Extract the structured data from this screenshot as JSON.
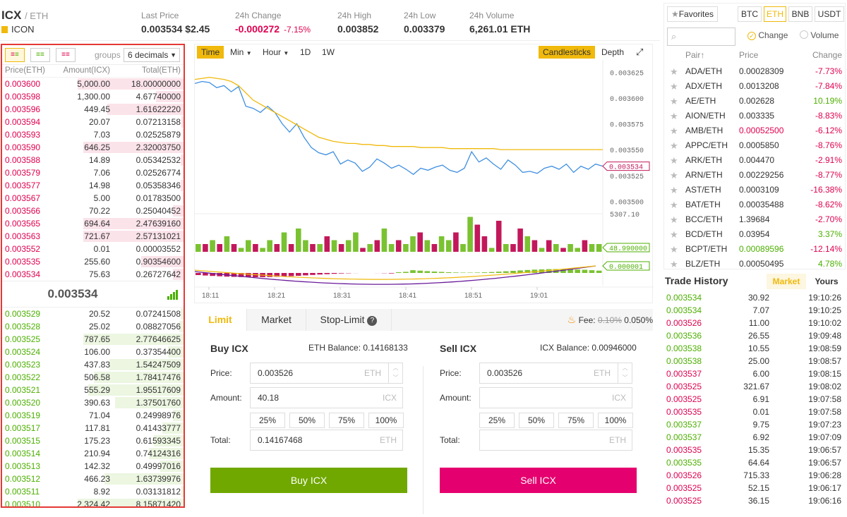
{
  "header": {
    "symbol": "ICX",
    "quote": "/ ETH",
    "name": "ICON",
    "last_price_label": "Last Price",
    "last_price": "0.003534",
    "last_price_usd": "$2.45",
    "change_label": "24h Change",
    "change": "-0.000272",
    "change_pct": "-7.15%",
    "high_label": "24h High",
    "high": "0.003852",
    "low_label": "24h Low",
    "low": "0.003379",
    "volume_label": "24h Volume",
    "volume": "6,261.01 ETH"
  },
  "orderbook": {
    "groups_label": "groups",
    "decimals": "6 decimals",
    "headers": [
      "Price(ETH)",
      "Amount(ICX)",
      "Total(ETH)"
    ],
    "asks": [
      {
        "price": "0.003600",
        "amount": "5,000.00",
        "total": "18.00000000",
        "depth": 1.0
      },
      {
        "price": "0.003598",
        "amount": "1,300.00",
        "total": "4.67740000",
        "depth": 0.26
      },
      {
        "price": "0.003596",
        "amount": "449.45",
        "total": "1.61622220",
        "depth": 0.72
      },
      {
        "price": "0.003594",
        "amount": "20.07",
        "total": "0.07213158",
        "depth": 0.02
      },
      {
        "price": "0.003593",
        "amount": "7.03",
        "total": "0.02525879",
        "depth": 0.01
      },
      {
        "price": "0.003590",
        "amount": "646.25",
        "total": "2.32003750",
        "depth": 0.95
      },
      {
        "price": "0.003588",
        "amount": "14.89",
        "total": "0.05342532",
        "depth": 0.03
      },
      {
        "price": "0.003579",
        "amount": "7.06",
        "total": "0.02526774",
        "depth": 0.01
      },
      {
        "price": "0.003577",
        "amount": "14.98",
        "total": "0.05358346",
        "depth": 0.03
      },
      {
        "price": "0.003567",
        "amount": "5.00",
        "total": "0.01783500",
        "depth": 0.01
      },
      {
        "price": "0.003566",
        "amount": "70.22",
        "total": "0.25040452",
        "depth": 0.1
      },
      {
        "price": "0.003565",
        "amount": "694.64",
        "total": "2.47639160",
        "depth": 0.95
      },
      {
        "price": "0.003563",
        "amount": "721.67",
        "total": "2.57131021",
        "depth": 0.95
      },
      {
        "price": "0.003552",
        "amount": "0.01",
        "total": "0.00003552",
        "depth": 0.0
      },
      {
        "price": "0.003535",
        "amount": "255.60",
        "total": "0.90354600",
        "depth": 0.4
      },
      {
        "price": "0.003534",
        "amount": "75.63",
        "total": "0.26727642",
        "depth": 0.1
      }
    ],
    "mid_price": "0.003534",
    "bids": [
      {
        "price": "0.003529",
        "amount": "20.52",
        "total": "0.07241508",
        "depth": 0.03
      },
      {
        "price": "0.003528",
        "amount": "25.02",
        "total": "0.08827056",
        "depth": 0.04
      },
      {
        "price": "0.003525",
        "amount": "787.65",
        "total": "2.77646625",
        "depth": 0.95
      },
      {
        "price": "0.003524",
        "amount": "106.00",
        "total": "0.37354400",
        "depth": 0.15
      },
      {
        "price": "0.003523",
        "amount": "437.83",
        "total": "1.54247509",
        "depth": 0.7
      },
      {
        "price": "0.003522",
        "amount": "506.58",
        "total": "1.78417476",
        "depth": 0.85
      },
      {
        "price": "0.003521",
        "amount": "555.29",
        "total": "1.95517609",
        "depth": 0.9
      },
      {
        "price": "0.003520",
        "amount": "390.63",
        "total": "1.37501760",
        "depth": 0.65
      },
      {
        "price": "0.003519",
        "amount": "71.04",
        "total": "0.24998976",
        "depth": 0.1
      },
      {
        "price": "0.003517",
        "amount": "117.81",
        "total": "0.41433777",
        "depth": 0.2
      },
      {
        "price": "0.003515",
        "amount": "175.23",
        "total": "0.61593345",
        "depth": 0.28
      },
      {
        "price": "0.003514",
        "amount": "210.94",
        "total": "0.74124316",
        "depth": 0.33
      },
      {
        "price": "0.003513",
        "amount": "142.32",
        "total": "0.49997016",
        "depth": 0.22
      },
      {
        "price": "0.003512",
        "amount": "466.23",
        "total": "1.63739976",
        "depth": 0.75
      },
      {
        "price": "0.003511",
        "amount": "8.92",
        "total": "0.03131812",
        "depth": 0.02
      },
      {
        "price": "0.003510",
        "amount": "2,324.42",
        "total": "8.15871420",
        "depth": 1.0
      }
    ]
  },
  "chart": {
    "tools": [
      "Time",
      "Min",
      "Hour",
      "1D",
      "1W"
    ],
    "candlesticks_label": "Candlesticks",
    "depth_label": "Depth",
    "y_ticks": [
      "0.003625",
      "0.003600",
      "0.003575",
      "0.003550",
      "0.003525",
      "0.003500"
    ],
    "price_tag": "0.003534",
    "vol_max": "5307.10",
    "vol_tag": "48.990000",
    "macd_tag": "0.000001",
    "x_ticks": [
      "18:11",
      "18:21",
      "18:31",
      "18:41",
      "18:51",
      "19:01"
    ]
  },
  "chart_data": {
    "type": "line",
    "series": [
      {
        "values": [
          0.003614,
          0.003616,
          0.003615,
          0.00361,
          0.003612,
          0.003606,
          0.003611,
          0.003592,
          0.00359,
          0.003586,
          0.003592,
          0.003586,
          0.003575,
          0.003567,
          0.003575,
          0.003562,
          0.003552,
          0.003547,
          0.003545,
          0.003548,
          0.003536,
          0.00354,
          0.003537,
          0.003529,
          0.003533,
          0.003541,
          0.003537,
          0.003532,
          0.003535,
          0.003531,
          0.003526,
          0.003532,
          0.00353,
          0.003533,
          0.003535,
          0.00353,
          0.003528,
          0.003532,
          0.003548,
          0.003538,
          0.003542,
          0.003536,
          0.003531,
          0.00354,
          0.003535,
          0.003528,
          0.003529,
          0.003527,
          0.003532,
          0.003534,
          0.003531,
          0.003536,
          0.003528,
          0.003534,
          0.003531,
          0.003536,
          0.003534
        ],
        "color": "#3f8fe0"
      },
      {
        "values": [
          0.003618,
          0.003619,
          0.00362,
          0.003619,
          0.003618,
          0.003616,
          0.003612,
          0.003605,
          0.003598,
          0.003594,
          0.00359,
          0.003586,
          0.003582,
          0.003578,
          0.003574,
          0.00357,
          0.003566,
          0.003562,
          0.00356,
          0.003558,
          0.003557,
          0.003556,
          0.003556,
          0.003555,
          0.003555,
          0.003554,
          0.003554,
          0.003553,
          0.003553,
          0.003553,
          0.003553,
          0.003552,
          0.003552,
          0.003552,
          0.003552,
          0.003551,
          0.003551,
          0.003551,
          0.003551,
          0.003551,
          0.003551,
          0.003551,
          0.00355,
          0.00355,
          0.00355,
          0.00355,
          0.00355,
          0.00355,
          0.00355,
          0.00355,
          0.00355,
          0.00355,
          0.00355,
          0.00355,
          0.00355,
          0.00355,
          0.00355
        ],
        "color": "#f0b90b"
      }
    ],
    "volume": [
      2,
      2,
      3,
      2,
      4,
      2,
      1,
      3,
      2,
      1,
      3,
      2,
      5,
      2,
      6,
      3,
      2,
      2,
      4,
      3,
      2,
      3,
      5,
      1,
      2,
      3,
      6,
      2,
      3,
      2,
      4,
      5,
      3,
      2,
      4,
      3,
      5,
      2,
      9,
      7,
      4,
      1,
      8,
      2,
      2,
      6,
      4,
      3,
      1,
      3,
      2,
      1,
      2,
      1,
      3,
      2,
      2
    ],
    "volume_up": [
      true,
      false,
      true,
      false,
      true,
      false,
      true,
      true,
      false,
      true,
      true,
      false,
      true,
      false,
      true,
      true,
      false,
      true,
      false,
      true,
      false,
      true,
      true,
      false,
      true,
      false,
      true,
      true,
      false,
      true,
      true,
      false,
      true,
      false,
      true,
      true,
      false,
      true,
      true,
      false,
      false,
      true,
      false,
      true,
      false,
      false,
      true,
      false,
      true,
      false,
      true,
      false,
      true,
      true,
      false,
      true,
      true
    ],
    "ylim": [
      0.00349,
      0.00363
    ]
  },
  "trade": {
    "tabs": [
      "Limit",
      "Market",
      "Stop-Limit"
    ],
    "fee_label": "Fee:",
    "fee_old": "0.10%",
    "fee_new": "0.050%",
    "buy": {
      "title": "Buy ICX",
      "balance": "ETH Balance: 0.14168133",
      "price_label": "Price:",
      "price": "0.003526",
      "price_unit": "ETH",
      "amount_label": "Amount:",
      "amount": "40.18",
      "amount_unit": "ICX",
      "total_label": "Total:",
      "total": "0.14167468",
      "total_unit": "ETH",
      "button": "Buy ICX"
    },
    "sell": {
      "title": "Sell ICX",
      "balance": "ICX Balance: 0.00946000",
      "price_label": "Price:",
      "price": "0.003526",
      "price_unit": "ETH",
      "amount_label": "Amount:",
      "amount": "",
      "amount_unit": "ICX",
      "total_label": "Total:",
      "total": "",
      "total_unit": "ETH",
      "button": "Sell ICX"
    },
    "percents": [
      "25%",
      "50%",
      "75%",
      "100%"
    ]
  },
  "markets": {
    "favorites": "Favorites",
    "tabs": [
      "BTC",
      "ETH",
      "BNB",
      "USDT"
    ],
    "change_radio": "Change",
    "volume_radio": "Volume",
    "headers": [
      "Pair",
      "Price",
      "Change"
    ],
    "rows": [
      {
        "pair": "ADA/ETH",
        "price": "0.00028309",
        "change": "-7.73%",
        "dir": "red",
        "pcolor": "#333"
      },
      {
        "pair": "ADX/ETH",
        "price": "0.0013208",
        "change": "-7.84%",
        "dir": "red",
        "pcolor": "#333"
      },
      {
        "pair": "AE/ETH",
        "price": "0.002628",
        "change": "10.19%",
        "dir": "green",
        "pcolor": "#333"
      },
      {
        "pair": "AION/ETH",
        "price": "0.003335",
        "change": "-8.83%",
        "dir": "red",
        "pcolor": "#333"
      },
      {
        "pair": "AMB/ETH",
        "price": "0.00052500",
        "change": "-6.12%",
        "dir": "red",
        "pcolor": "#e0004f"
      },
      {
        "pair": "APPC/ETH",
        "price": "0.0005850",
        "change": "-8.76%",
        "dir": "red",
        "pcolor": "#333"
      },
      {
        "pair": "ARK/ETH",
        "price": "0.004470",
        "change": "-2.91%",
        "dir": "red",
        "pcolor": "#333"
      },
      {
        "pair": "ARN/ETH",
        "price": "0.00229256",
        "change": "-8.77%",
        "dir": "red",
        "pcolor": "#333"
      },
      {
        "pair": "AST/ETH",
        "price": "0.0003109",
        "change": "-16.38%",
        "dir": "red",
        "pcolor": "#333"
      },
      {
        "pair": "BAT/ETH",
        "price": "0.00035488",
        "change": "-8.62%",
        "dir": "red",
        "pcolor": "#333"
      },
      {
        "pair": "BCC/ETH",
        "price": "1.39684",
        "change": "-2.70%",
        "dir": "red",
        "pcolor": "#333"
      },
      {
        "pair": "BCD/ETH",
        "price": "0.03954",
        "change": "3.37%",
        "dir": "green",
        "pcolor": "#333"
      },
      {
        "pair": "BCPT/ETH",
        "price": "0.00089596",
        "change": "-12.14%",
        "dir": "red",
        "pcolor": "#4caf00"
      },
      {
        "pair": "BLZ/ETH",
        "price": "0.00050495",
        "change": "4.78%",
        "dir": "green",
        "pcolor": "#333"
      }
    ]
  },
  "history": {
    "title": "Trade History",
    "tabs": [
      "Market",
      "Yours"
    ],
    "rows": [
      {
        "price": "0.003534",
        "amount": "30.92",
        "time": "19:10:26",
        "dir": "green"
      },
      {
        "price": "0.003534",
        "amount": "7.07",
        "time": "19:10:25",
        "dir": "green"
      },
      {
        "price": "0.003526",
        "amount": "11.00",
        "time": "19:10:02",
        "dir": "red"
      },
      {
        "price": "0.003536",
        "amount": "26.55",
        "time": "19:09:48",
        "dir": "green"
      },
      {
        "price": "0.003538",
        "amount": "10.55",
        "time": "19:08:59",
        "dir": "green"
      },
      {
        "price": "0.003538",
        "amount": "25.00",
        "time": "19:08:57",
        "dir": "green"
      },
      {
        "price": "0.003537",
        "amount": "6.00",
        "time": "19:08:15",
        "dir": "red"
      },
      {
        "price": "0.003525",
        "amount": "321.67",
        "time": "19:08:02",
        "dir": "red"
      },
      {
        "price": "0.003525",
        "amount": "6.91",
        "time": "19:07:58",
        "dir": "red"
      },
      {
        "price": "0.003535",
        "amount": "0.01",
        "time": "19:07:58",
        "dir": "red"
      },
      {
        "price": "0.003537",
        "amount": "9.75",
        "time": "19:07:23",
        "dir": "green"
      },
      {
        "price": "0.003537",
        "amount": "6.92",
        "time": "19:07:09",
        "dir": "green"
      },
      {
        "price": "0.003535",
        "amount": "15.35",
        "time": "19:06:57",
        "dir": "red"
      },
      {
        "price": "0.003535",
        "amount": "64.64",
        "time": "19:06:57",
        "dir": "green"
      },
      {
        "price": "0.003526",
        "amount": "715.33",
        "time": "19:06:28",
        "dir": "red"
      },
      {
        "price": "0.003525",
        "amount": "52.15",
        "time": "19:06:17",
        "dir": "red"
      },
      {
        "price": "0.003525",
        "amount": "36.15",
        "time": "19:06:16",
        "dir": "red"
      }
    ]
  }
}
